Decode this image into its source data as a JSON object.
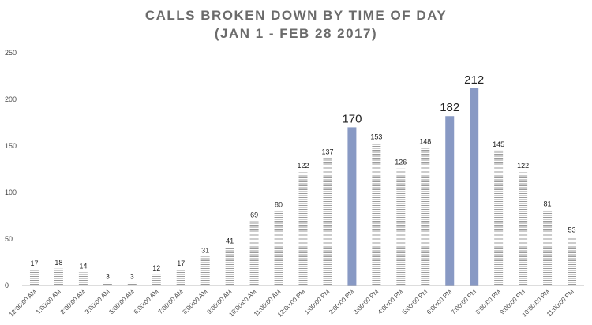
{
  "chart_data": {
    "type": "bar",
    "title": "CALLS BROKEN DOWN BY TIME OF DAY",
    "subtitle": "(JAN 1 - FEB 28 2017)",
    "xlabel": "",
    "ylabel": "",
    "ylim": [
      0,
      250
    ],
    "yticks": [
      "0",
      "50",
      "100",
      "150",
      "200",
      "250"
    ],
    "grid": false,
    "categories": [
      "12:00:00 AM",
      "1:00:00 AM",
      "2:00:00 AM",
      "3:00:00 AM",
      "5:00:00 AM",
      "6:00:00 AM",
      "7:00:00 AM",
      "8:00:00 AM",
      "9:00:00 AM",
      "10:00:00 AM",
      "11:00:00 AM",
      "12:00:00 PM",
      "1:00:00 PM",
      "2:00:00 PM",
      "3:00:00 PM",
      "4:00:00 PM",
      "5:00:00 PM",
      "6:00:00 PM",
      "7:00:00 PM",
      "8:00:00 PM",
      "9:00:00 PM",
      "10:00:00 PM",
      "11:00:00 PM"
    ],
    "values": [
      17,
      18,
      14,
      3,
      3,
      12,
      17,
      31,
      41,
      69,
      80,
      122,
      137,
      170,
      153,
      126,
      148,
      182,
      212,
      145,
      122,
      81,
      53
    ],
    "highlighted": [
      "2:00:00 PM",
      "6:00:00 PM",
      "7:00:00 PM"
    ],
    "colors": {
      "bar_stripe": "#9a9a9a",
      "highlight": "#8899c4",
      "axis": "#bbbbbb"
    }
  }
}
